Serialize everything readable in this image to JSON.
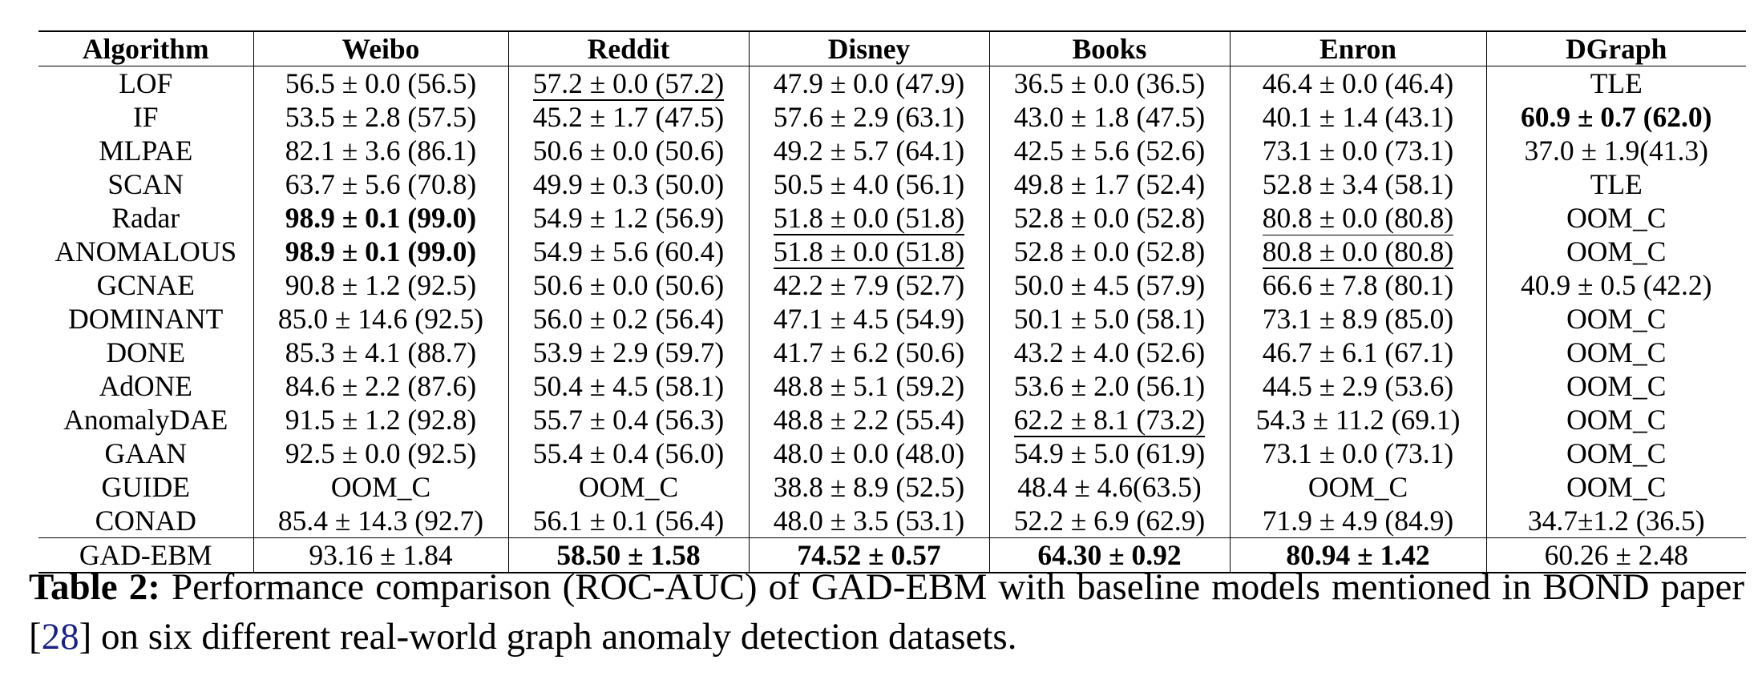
{
  "table": {
    "columns": [
      "Algorithm",
      "Weibo",
      "Reddit",
      "Disney",
      "Books",
      "Enron",
      "DGraph"
    ],
    "rows": [
      {
        "name": "LOF",
        "cells": [
          {
            "v": "56.5 ± 0.0 (56.5)"
          },
          {
            "v": "57.2 ± 0.0 (57.2)",
            "u": true
          },
          {
            "v": "47.9 ± 0.0 (47.9)"
          },
          {
            "v": "36.5 ± 0.0 (36.5)"
          },
          {
            "v": "46.4 ± 0.0 (46.4)"
          },
          {
            "v": "TLE"
          }
        ]
      },
      {
        "name": "IF",
        "cells": [
          {
            "v": "53.5 ± 2.8 (57.5)"
          },
          {
            "v": "45.2 ± 1.7 (47.5)"
          },
          {
            "v": "57.6 ± 2.9 (63.1)"
          },
          {
            "v": "43.0 ± 1.8 (47.5)"
          },
          {
            "v": "40.1 ± 1.4 (43.1)"
          },
          {
            "v": "60.9 ± 0.7 (62.0)",
            "b": true
          }
        ]
      },
      {
        "name": "MLPAE",
        "cells": [
          {
            "v": "82.1 ± 3.6 (86.1)"
          },
          {
            "v": "50.6 ± 0.0 (50.6)"
          },
          {
            "v": "49.2 ± 5.7 (64.1)"
          },
          {
            "v": "42.5 ± 5.6 (52.6)"
          },
          {
            "v": "73.1 ± 0.0 (73.1)"
          },
          {
            "v": "37.0 ± 1.9(41.3)"
          }
        ]
      },
      {
        "name": "SCAN",
        "cells": [
          {
            "v": "63.7 ± 5.6 (70.8)"
          },
          {
            "v": "49.9 ± 0.3 (50.0)"
          },
          {
            "v": "50.5 ± 4.0 (56.1)"
          },
          {
            "v": "49.8 ± 1.7 (52.4)"
          },
          {
            "v": "52.8 ± 3.4 (58.1)"
          },
          {
            "v": "TLE"
          }
        ]
      },
      {
        "name": "Radar",
        "cells": [
          {
            "v": "98.9 ± 0.1 (99.0)",
            "b": true
          },
          {
            "v": "54.9 ± 1.2 (56.9)"
          },
          {
            "v": "51.8 ± 0.0 (51.8)",
            "u": true
          },
          {
            "v": "52.8 ± 0.0 (52.8)"
          },
          {
            "v": "80.8 ± 0.0 (80.8)",
            "u": true
          },
          {
            "v": "OOM_C"
          }
        ]
      },
      {
        "name": "ANOMALOUS",
        "cells": [
          {
            "v": "98.9 ± 0.1 (99.0)",
            "b": true
          },
          {
            "v": "54.9 ± 5.6 (60.4)"
          },
          {
            "v": "51.8 ± 0.0 (51.8)",
            "u": true
          },
          {
            "v": "52.8 ± 0.0 (52.8)"
          },
          {
            "v": "80.8 ± 0.0 (80.8)",
            "u": true
          },
          {
            "v": "OOM_C"
          }
        ]
      },
      {
        "name": "GCNAE",
        "cells": [
          {
            "v": "90.8 ± 1.2 (92.5)"
          },
          {
            "v": "50.6 ± 0.0 (50.6)"
          },
          {
            "v": "42.2 ± 7.9 (52.7)"
          },
          {
            "v": "50.0 ± 4.5 (57.9)"
          },
          {
            "v": "66.6 ± 7.8 (80.1)"
          },
          {
            "v": "40.9 ± 0.5 (42.2)"
          }
        ]
      },
      {
        "name": "DOMINANT",
        "cells": [
          {
            "v": "85.0 ± 14.6 (92.5)"
          },
          {
            "v": "56.0 ± 0.2 (56.4)"
          },
          {
            "v": "47.1 ± 4.5 (54.9)"
          },
          {
            "v": "50.1 ± 5.0 (58.1)"
          },
          {
            "v": "73.1 ± 8.9 (85.0)"
          },
          {
            "v": "OOM_C"
          }
        ]
      },
      {
        "name": "DONE",
        "cells": [
          {
            "v": "85.3 ± 4.1 (88.7)"
          },
          {
            "v": "53.9 ± 2.9 (59.7)"
          },
          {
            "v": "41.7 ± 6.2 (50.6)"
          },
          {
            "v": "43.2 ± 4.0 (52.6)"
          },
          {
            "v": "46.7 ± 6.1 (67.1)"
          },
          {
            "v": "OOM_C"
          }
        ]
      },
      {
        "name": "AdONE",
        "cells": [
          {
            "v": "84.6 ± 2.2 (87.6)"
          },
          {
            "v": "50.4 ± 4.5 (58.1)"
          },
          {
            "v": "48.8 ± 5.1 (59.2)"
          },
          {
            "v": "53.6 ± 2.0 (56.1)"
          },
          {
            "v": "44.5 ± 2.9 (53.6)"
          },
          {
            "v": "OOM_C"
          }
        ]
      },
      {
        "name": "AnomalyDAE",
        "cells": [
          {
            "v": "91.5 ± 1.2 (92.8)"
          },
          {
            "v": "55.7 ± 0.4 (56.3)"
          },
          {
            "v": "48.8 ± 2.2 (55.4)"
          },
          {
            "v": "62.2 ± 8.1 (73.2)",
            "u": true
          },
          {
            "v": "54.3 ± 11.2 (69.1)"
          },
          {
            "v": "OOM_C"
          }
        ]
      },
      {
        "name": "GAAN",
        "cells": [
          {
            "v": "92.5 ± 0.0 (92.5)"
          },
          {
            "v": "55.4 ± 0.4 (56.0)"
          },
          {
            "v": "48.0 ± 0.0 (48.0)"
          },
          {
            "v": "54.9 ± 5.0 (61.9)"
          },
          {
            "v": "73.1 ± 0.0 (73.1)"
          },
          {
            "v": "OOM_C"
          }
        ]
      },
      {
        "name": "GUIDE",
        "cells": [
          {
            "v": "OOM_C"
          },
          {
            "v": "OOM_C"
          },
          {
            "v": "38.8 ± 8.9 (52.5)"
          },
          {
            "v": "48.4 ± 4.6(63.5)"
          },
          {
            "v": "OOM_C"
          },
          {
            "v": "OOM_C"
          }
        ]
      },
      {
        "name": "CONAD",
        "cells": [
          {
            "v": "85.4 ± 14.3 (92.7)"
          },
          {
            "v": "56.1 ± 0.1 (56.4)"
          },
          {
            "v": "48.0 ± 3.5 (53.1)"
          },
          {
            "v": "52.2 ± 6.9 (62.9)"
          },
          {
            "v": "71.9 ± 4.9 (84.9)"
          },
          {
            "v": "34.7±1.2 (36.5)"
          }
        ]
      }
    ],
    "footer": {
      "name": "GAD-EBM",
      "cells": [
        {
          "v": "93.16 ± 1.84",
          "u": true
        },
        {
          "v": "58.50 ± 1.58",
          "b": true
        },
        {
          "v": "74.52 ± 0.57",
          "b": true
        },
        {
          "v": "64.30 ± 0.92",
          "b": true
        },
        {
          "v": "80.94 ± 1.42",
          "b": true
        },
        {
          "v": "60.26 ± 2.48",
          "u": true
        }
      ]
    }
  },
  "caption": {
    "label": "Table 2:",
    "text_before": " Performance comparison (ROC-AUC) of GAD-EBM with baseline models mentioned in BOND paper [",
    "ref": "28",
    "text_after": "] on six different real-world graph anomaly detection datasets."
  }
}
